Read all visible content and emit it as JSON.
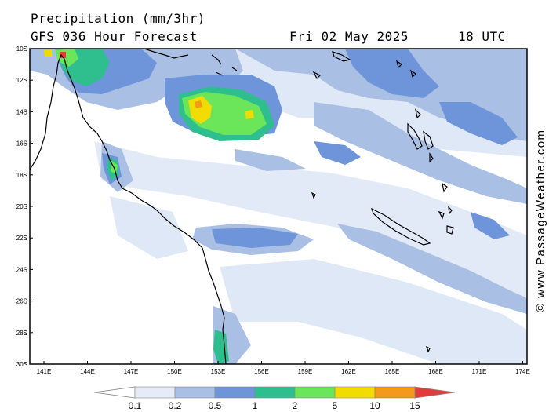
{
  "header": {
    "title": "Precipitation (mm/3hr)",
    "subtitle": "GFS 036 Hour Forecast",
    "date": "Fri 02 May 2025",
    "time": "18 UTC"
  },
  "credit": "© www.PassageWeather.com",
  "axes": {
    "lat_labels": [
      "10S",
      "12S",
      "14S",
      "16S",
      "18S",
      "20S",
      "22S",
      "24S",
      "26S",
      "28S",
      "30S"
    ],
    "lon_labels": [
      "141E",
      "144E",
      "147E",
      "150E",
      "153E",
      "156E",
      "159E",
      "162E",
      "165E",
      "168E",
      "171E",
      "174E"
    ]
  },
  "legend": {
    "labels": [
      "0.1",
      "0.2",
      "0.5",
      "1",
      "2",
      "5",
      "10",
      "15"
    ],
    "colors": [
      "#e6ecf7",
      "#a9bfe3",
      "#6e94d9",
      "#2fbf8e",
      "#6be65a",
      "#f0dc00",
      "#f39a1a",
      "#e23b3b"
    ]
  },
  "colors": {
    "land_outline": "#000000",
    "rain_light": "#dfe8f6",
    "rain_low": "#a9bfe3",
    "rain_mid": "#6e94d9",
    "rain_green": "#2fbf8e",
    "rain_lime": "#6be65a",
    "rain_yellow": "#f0dc00",
    "rain_orange": "#f39a1a",
    "rain_red": "#e23b3b"
  }
}
